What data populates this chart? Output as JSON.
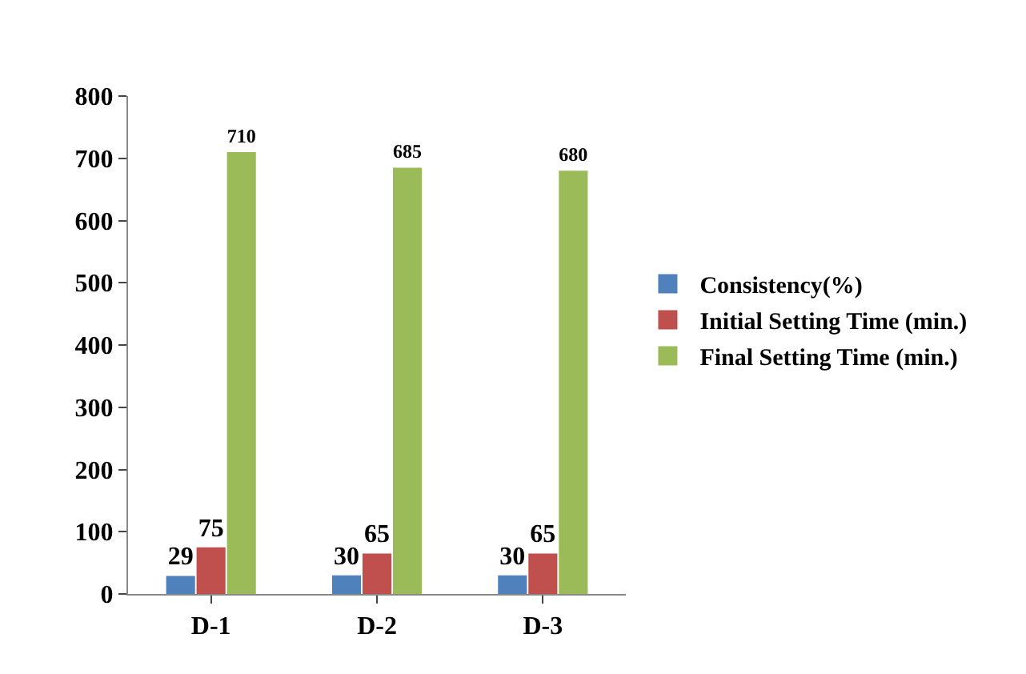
{
  "chart_data": {
    "type": "bar",
    "categories": [
      "D-1",
      "D-2",
      "D-3"
    ],
    "series": [
      {
        "name": "Consistency(%)",
        "color": "#4f81bd",
        "values": [
          29,
          30,
          30
        ]
      },
      {
        "name": "Initial Setting Time (min.)",
        "color": "#c0504d",
        "values": [
          75,
          65,
          65
        ]
      },
      {
        "name": "Final Setting Time (min.)",
        "color": "#9bbb59",
        "values": [
          710,
          685,
          680
        ]
      }
    ],
    "ylim": [
      0,
      800
    ],
    "yticks": [
      0,
      100,
      200,
      300,
      400,
      500,
      600,
      700,
      800
    ],
    "grid": false,
    "legend": "right",
    "data_labels": true
  }
}
